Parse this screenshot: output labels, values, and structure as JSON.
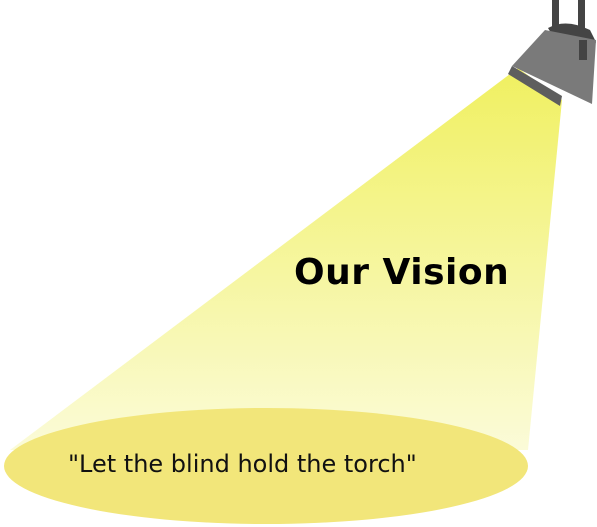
{
  "heading": "Our Vision",
  "quote": "\"Let the blind hold the torch\"",
  "icons": {
    "spotlight": "spotlight-lamp-icon"
  },
  "colors": {
    "beam_top": "#f0f060",
    "beam_bottom": "#fbfbd8",
    "floor_ellipse": "#f2e67a",
    "lamp_body": "#7a7a7a",
    "lamp_lens": "#5e5e5e",
    "lamp_stand": "#444444"
  }
}
